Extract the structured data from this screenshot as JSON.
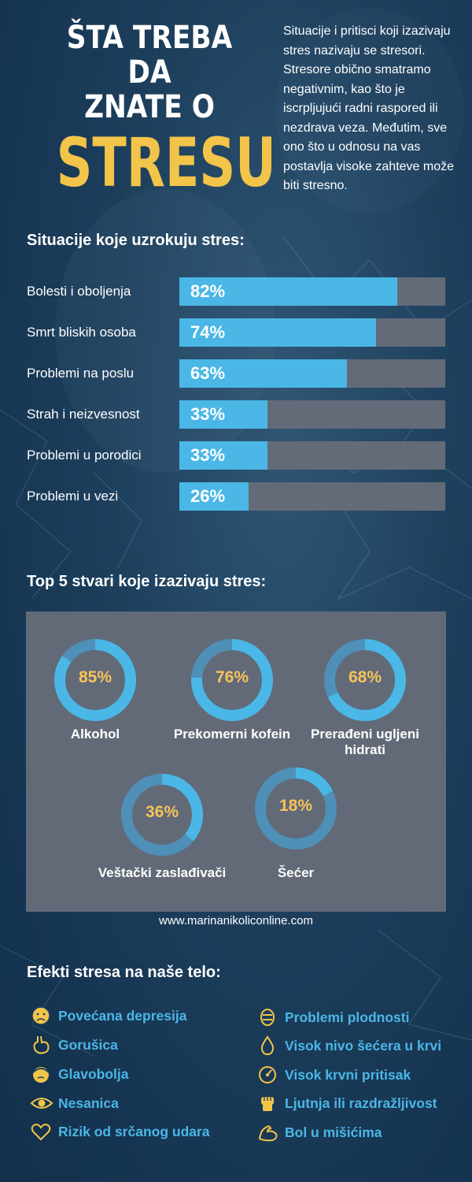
{
  "header": {
    "title_line1": "ŠTA TREBA DA",
    "title_line2": "ZNATE O",
    "title_big": "STRESU",
    "intro": "Situacije i pritisci koji izazivaju stres nazivaju se stresori. Stresore obično smatramo negativnim, kao što je iscrpljujući radni raspored ili nezdrava veza. Međutim, sve ono što u odnosu na vas postavlja visoke zahteve može biti stresno."
  },
  "situations": {
    "heading": "Situacije koje uzrokuju stres:",
    "items": [
      {
        "label": "Bolesti i oboljenja",
        "value": 82,
        "pct": "82%"
      },
      {
        "label": "Smrt bliskih osoba",
        "value": 74,
        "pct": "74%"
      },
      {
        "label": "Problemi na poslu",
        "value": 63,
        "pct": "63%"
      },
      {
        "label": "Strah i neizvesnost",
        "value": 33,
        "pct": "33%"
      },
      {
        "label": "Problemi u porodici",
        "value": 33,
        "pct": "33%"
      },
      {
        "label": "Problemi u vezi",
        "value": 26,
        "pct": "26%"
      }
    ]
  },
  "top5": {
    "heading": "Top 5 stvari koje izazivaju stres:",
    "items": [
      {
        "pct": "85%",
        "value": 85,
        "label": "Alkohol"
      },
      {
        "pct": "76%",
        "value": 76,
        "label": "Prekomerni kofein"
      },
      {
        "pct": "68%",
        "value": 68,
        "label": "Prerađeni ugljeni hidrati"
      },
      {
        "pct": "36%",
        "value": 36,
        "label": "Veštački zaslađivači"
      },
      {
        "pct": "18%",
        "value": 18,
        "label": "Šećer"
      }
    ],
    "website": "www.marinanikoliconline.com"
  },
  "effects": {
    "heading": "Efekti stresa na naše telo:",
    "left": [
      {
        "icon": "sad-face-icon",
        "text": "Povećana depresija"
      },
      {
        "icon": "stomach-icon",
        "text": "Gorušica"
      },
      {
        "icon": "headache-icon",
        "text": "Glavobolja"
      },
      {
        "icon": "eye-icon",
        "text": "Nesanica"
      },
      {
        "icon": "heart-icon",
        "text": "Rizik od srčanog udara"
      }
    ],
    "right": [
      {
        "icon": "fertility-icon",
        "text": "Problemi plodnosti"
      },
      {
        "icon": "drop-icon",
        "text": "Visok nivo šećera u krvi"
      },
      {
        "icon": "gauge-icon",
        "text": "Visok krvni pritisak"
      },
      {
        "icon": "fist-icon",
        "text": "Ljutnja ili razdražljivost"
      },
      {
        "icon": "muscle-icon",
        "text": "Bol u mišićima"
      }
    ]
  },
  "colors": {
    "accent_blue": "#4ab7e6",
    "title_yellow": "#f3c44a",
    "pct_yellow": "#f6c35a",
    "track_gray": "#636b78",
    "donut_ring": "#4f95c0"
  }
}
